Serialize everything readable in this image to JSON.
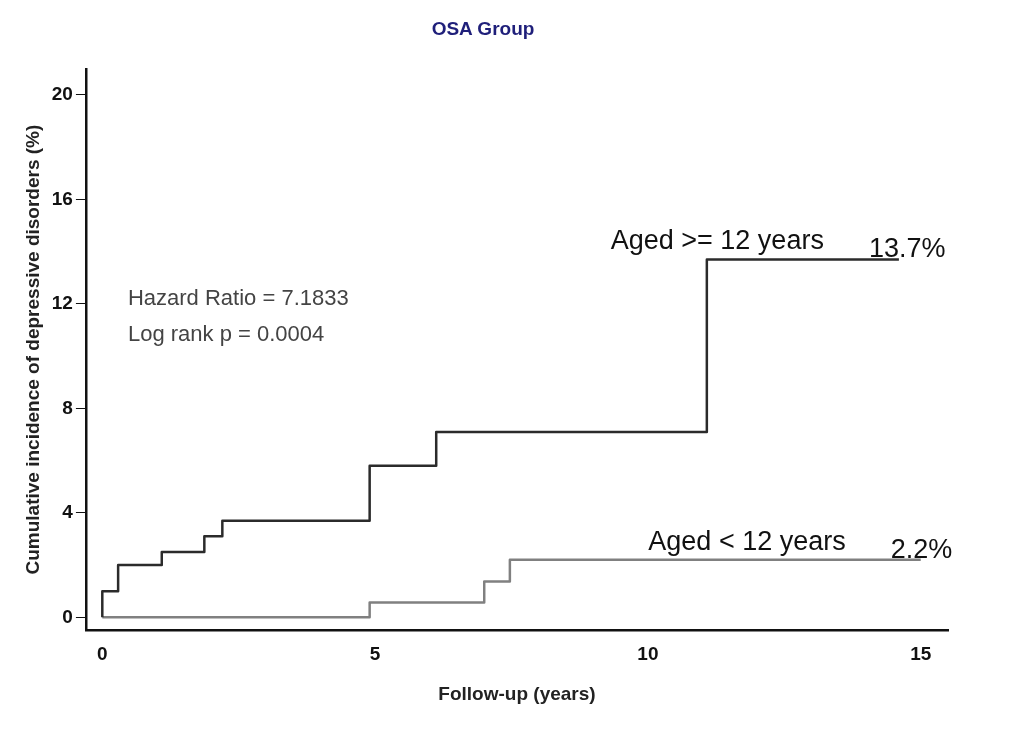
{
  "chart_data": {
    "type": "step",
    "title": "OSA Group",
    "xlabel": "Follow-up (years)",
    "ylabel": "Cumulative incidence of depressive disorders (%)",
    "xlim": [
      -0.3,
      15.5
    ],
    "xticks": [
      0,
      5,
      10,
      15
    ],
    "ylim": [
      -0.5,
      21
    ],
    "yticks": [
      0,
      4,
      8,
      12,
      16,
      20
    ],
    "grid": false,
    "legend": false,
    "marker": "none",
    "line_style": "solid",
    "series": [
      {
        "name": "Aged >= 12 years",
        "color": "#2b2b2b",
        "x": [
          0,
          0,
          0.29,
          1.09,
          1.87,
          2.2,
          4.9,
          6.12,
          11.08,
          14.6
        ],
        "values": [
          0,
          1.0,
          2.0,
          2.5,
          3.1,
          3.7,
          5.8,
          7.1,
          13.7,
          13.7
        ]
      },
      {
        "name": "Aged < 12 years",
        "color": "#808080",
        "x": [
          0,
          4.9,
          7.0,
          7.47,
          15
        ],
        "values": [
          0,
          0.57,
          1.37,
          2.2,
          2.2
        ]
      }
    ],
    "annotations": [
      "Hazard Ratio = 7.1833",
      "Log rank p = 0.0004",
      {
        "text": "13.7%",
        "x": 14.6,
        "y": 13.7
      },
      {
        "text": "2.2%",
        "x": 15,
        "y": 2.2
      }
    ]
  }
}
